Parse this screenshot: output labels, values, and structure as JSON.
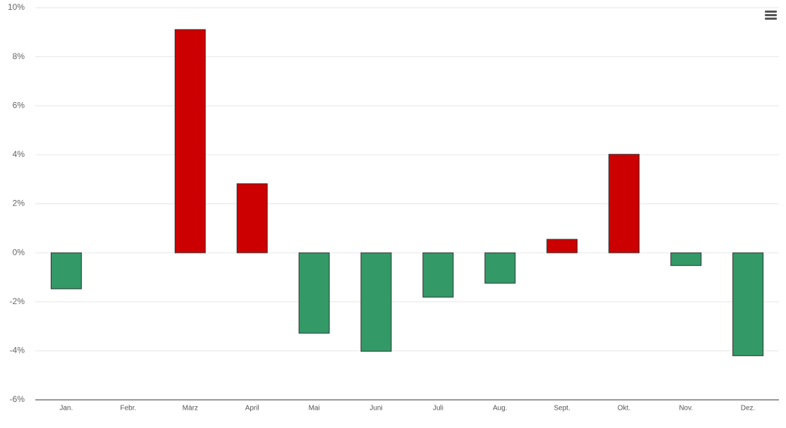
{
  "chart_data": {
    "type": "bar",
    "categories": [
      "Jan.",
      "Febr.",
      "März",
      "April",
      "Mai",
      "Juni",
      "Juli",
      "Aug.",
      "Sept.",
      "Okt.",
      "Nov.",
      "Dez."
    ],
    "values": [
      -1.47,
      null,
      9.11,
      2.82,
      -3.28,
      -4.02,
      -1.81,
      -1.24,
      0.55,
      4.02,
      -0.52,
      -4.2
    ],
    "positive_color": "#cc0000",
    "negative_color": "#339966",
    "ylim": [
      -6,
      10
    ],
    "yticks": [
      {
        "value": -6,
        "label": "-6%"
      },
      {
        "value": -4,
        "label": "-4%"
      },
      {
        "value": -2,
        "label": "-2%"
      },
      {
        "value": 0,
        "label": "0%"
      },
      {
        "value": 2,
        "label": "2%"
      },
      {
        "value": 4,
        "label": "4%"
      },
      {
        "value": 6,
        "label": "6%"
      },
      {
        "value": 8,
        "label": "8%"
      },
      {
        "value": 10,
        "label": "10%"
      }
    ],
    "grid": true
  }
}
